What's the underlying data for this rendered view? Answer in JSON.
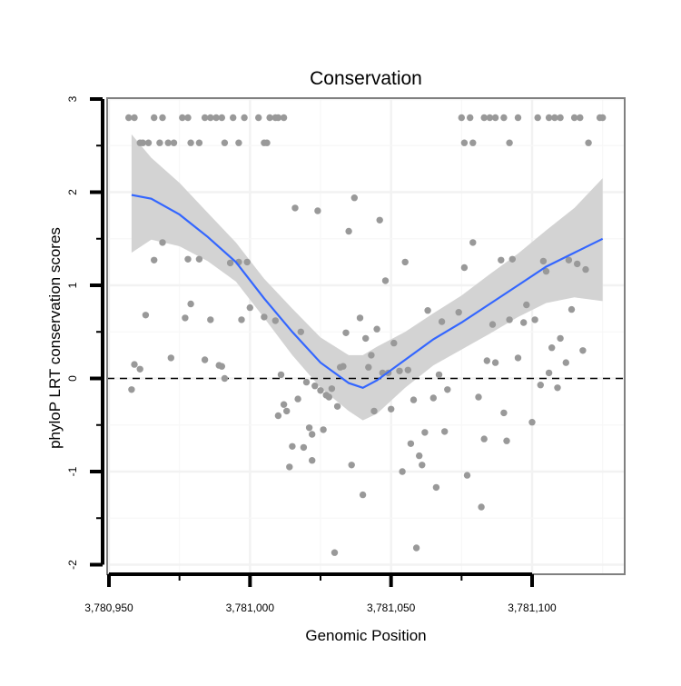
{
  "chart_data": {
    "type": "scatter",
    "title": "Conservation",
    "xlabel": "Genomic Position",
    "ylabel": "phyloP LRT conservation scores",
    "xlim": [
      3780951,
      3781125
    ],
    "ylim": [
      -2,
      3
    ],
    "x_ticks": [
      3780950,
      3781000,
      3781050,
      3781100
    ],
    "x_tick_labels": [
      "3,780,950",
      "3,781,000",
      "3,781,050",
      "3,781,100"
    ],
    "y_ticks": [
      -2,
      -1,
      0,
      1,
      2,
      3
    ],
    "y_tick_labels": [
      "-2",
      "-1",
      "0",
      "1",
      "2",
      "3"
    ],
    "grid": true,
    "reference_line": {
      "y": 0,
      "style": "dashed"
    },
    "point_color": "#999999",
    "smooth_color": "#3366ff",
    "band_color": "#d3d3d3",
    "points": [
      [
        3780957,
        2.8
      ],
      [
        3780959,
        2.8
      ],
      [
        3780961,
        2.53
      ],
      [
        3780962,
        2.53
      ],
      [
        3780964,
        2.53
      ],
      [
        3780966,
        2.8
      ],
      [
        3780968,
        2.53
      ],
      [
        3780969,
        2.8
      ],
      [
        3780971,
        2.53
      ],
      [
        3780973,
        2.53
      ],
      [
        3780976,
        2.8
      ],
      [
        3780978,
        2.8
      ],
      [
        3780979,
        2.53
      ],
      [
        3780982,
        2.53
      ],
      [
        3780984,
        2.8
      ],
      [
        3780986,
        2.8
      ],
      [
        3780988,
        2.8
      ],
      [
        3780990,
        2.8
      ],
      [
        3780991,
        2.53
      ],
      [
        3780994,
        2.8
      ],
      [
        3780996,
        2.53
      ],
      [
        3780998,
        2.8
      ],
      [
        3781003,
        2.8
      ],
      [
        3781005,
        2.53
      ],
      [
        3781006,
        2.53
      ],
      [
        3781007,
        2.8
      ],
      [
        3781009,
        2.8
      ],
      [
        3781010,
        2.8
      ],
      [
        3781012,
        2.8
      ],
      [
        3781075,
        2.8
      ],
      [
        3781076,
        2.53
      ],
      [
        3781078,
        2.8
      ],
      [
        3781079,
        2.53
      ],
      [
        3781083,
        2.8
      ],
      [
        3781085,
        2.8
      ],
      [
        3781087,
        2.8
      ],
      [
        3781090,
        2.8
      ],
      [
        3781092,
        2.53
      ],
      [
        3781095,
        2.8
      ],
      [
        3781102,
        2.8
      ],
      [
        3781106,
        2.8
      ],
      [
        3781108,
        2.8
      ],
      [
        3781110,
        2.8
      ],
      [
        3781115,
        2.8
      ],
      [
        3781117,
        2.8
      ],
      [
        3781120,
        2.53
      ],
      [
        3781124,
        2.8
      ],
      [
        3781125,
        2.8
      ],
      [
        3780958,
        -0.12
      ],
      [
        3780959,
        0.15
      ],
      [
        3780961,
        0.1
      ],
      [
        3780963,
        0.68
      ],
      [
        3780966,
        1.27
      ],
      [
        3780969,
        1.46
      ],
      [
        3780972,
        0.22
      ],
      [
        3780977,
        0.65
      ],
      [
        3780978,
        1.28
      ],
      [
        3780979,
        0.8
      ],
      [
        3780982,
        1.28
      ],
      [
        3780984,
        0.2
      ],
      [
        3780986,
        0.63
      ],
      [
        3780989,
        0.14
      ],
      [
        3780990,
        0.13
      ],
      [
        3780991,
        0.0
      ],
      [
        3780993,
        1.24
      ],
      [
        3780996,
        1.25
      ],
      [
        3780997,
        0.63
      ],
      [
        3780999,
        1.25
      ],
      [
        3781000,
        0.76
      ],
      [
        3781005,
        0.66
      ],
      [
        3781009,
        0.62
      ],
      [
        3781010,
        -0.4
      ],
      [
        3781011,
        0.04
      ],
      [
        3781012,
        -0.28
      ],
      [
        3781013,
        -0.35
      ],
      [
        3781014,
        -0.95
      ],
      [
        3781015,
        -0.73
      ],
      [
        3781016,
        1.83
      ],
      [
        3781017,
        -0.22
      ],
      [
        3781018,
        0.5
      ],
      [
        3781019,
        -0.74
      ],
      [
        3781020,
        -0.04
      ],
      [
        3781021,
        -0.53
      ],
      [
        3781022,
        -0.88
      ],
      [
        3781022,
        -0.6
      ],
      [
        3781023,
        -0.08
      ],
      [
        3781024,
        1.8
      ],
      [
        3781025,
        -0.13
      ],
      [
        3781026,
        -0.55
      ],
      [
        3781027,
        -0.18
      ],
      [
        3781028,
        -0.2
      ],
      [
        3781029,
        -0.11
      ],
      [
        3781030,
        -1.87
      ],
      [
        3781031,
        -0.3
      ],
      [
        3781032,
        0.12
      ],
      [
        3781033,
        0.13
      ],
      [
        3781034,
        0.49
      ],
      [
        3781035,
        1.58
      ],
      [
        3781036,
        -0.93
      ],
      [
        3781037,
        1.94
      ],
      [
        3781039,
        0.65
      ],
      [
        3781040,
        -1.25
      ],
      [
        3781041,
        0.43
      ],
      [
        3781042,
        0.12
      ],
      [
        3781043,
        0.25
      ],
      [
        3781044,
        -0.35
      ],
      [
        3781045,
        0.53
      ],
      [
        3781046,
        1.7
      ],
      [
        3781047,
        0.06
      ],
      [
        3781048,
        1.05
      ],
      [
        3781049,
        0.06
      ],
      [
        3781050,
        -0.33
      ],
      [
        3781051,
        0.38
      ],
      [
        3781053,
        0.08
      ],
      [
        3781054,
        -1.0
      ],
      [
        3781055,
        1.25
      ],
      [
        3781056,
        0.09
      ],
      [
        3781057,
        -0.7
      ],
      [
        3781058,
        -0.23
      ],
      [
        3781059,
        -1.82
      ],
      [
        3781060,
        -0.83
      ],
      [
        3781061,
        -0.93
      ],
      [
        3781062,
        -0.58
      ],
      [
        3781063,
        0.73
      ],
      [
        3781065,
        -0.21
      ],
      [
        3781066,
        -1.17
      ],
      [
        3781067,
        0.04
      ],
      [
        3781068,
        0.61
      ],
      [
        3781069,
        -0.57
      ],
      [
        3781070,
        -0.12
      ],
      [
        3781074,
        0.71
      ],
      [
        3781076,
        1.19
      ],
      [
        3781077,
        -1.04
      ],
      [
        3781079,
        1.46
      ],
      [
        3781081,
        -0.2
      ],
      [
        3781082,
        -1.38
      ],
      [
        3781083,
        -0.65
      ],
      [
        3781084,
        0.19
      ],
      [
        3781086,
        0.58
      ],
      [
        3781087,
        0.17
      ],
      [
        3781089,
        1.27
      ],
      [
        3781090,
        -0.37
      ],
      [
        3781091,
        -0.67
      ],
      [
        3781092,
        0.63
      ],
      [
        3781093,
        1.28
      ],
      [
        3781095,
        0.22
      ],
      [
        3781097,
        0.6
      ],
      [
        3781098,
        0.79
      ],
      [
        3781100,
        -0.47
      ],
      [
        3781101,
        0.63
      ],
      [
        3781103,
        -0.07
      ],
      [
        3781104,
        1.26
      ],
      [
        3781105,
        1.15
      ],
      [
        3781106,
        0.06
      ],
      [
        3781107,
        0.33
      ],
      [
        3781109,
        -0.1
      ],
      [
        3781110,
        0.43
      ],
      [
        3781112,
        0.17
      ],
      [
        3781113,
        1.27
      ],
      [
        3781114,
        0.74
      ],
      [
        3781116,
        1.23
      ],
      [
        3781118,
        0.3
      ],
      [
        3781119,
        1.17
      ]
    ],
    "smooth": {
      "x": [
        3780958,
        3780965,
        3780975,
        3780985,
        3780995,
        3781005,
        3781015,
        3781025,
        3781035,
        3781040,
        3781045,
        3781055,
        3781065,
        3781075,
        3781085,
        3781095,
        3781105,
        3781115,
        3781125
      ],
      "y": [
        1.97,
        1.93,
        1.76,
        1.52,
        1.25,
        0.86,
        0.5,
        0.17,
        -0.05,
        -0.1,
        -0.02,
        0.2,
        0.42,
        0.6,
        0.8,
        1.0,
        1.2,
        1.35,
        1.5
      ],
      "lower": [
        1.35,
        1.49,
        1.42,
        1.26,
        1.04,
        0.65,
        0.25,
        -0.1,
        -0.35,
        -0.45,
        -0.38,
        -0.1,
        0.14,
        0.31,
        0.48,
        0.66,
        0.81,
        0.87,
        0.83
      ],
      "upper": [
        2.62,
        2.37,
        2.1,
        1.78,
        1.46,
        1.07,
        0.75,
        0.44,
        0.25,
        0.25,
        0.34,
        0.5,
        0.7,
        0.89,
        1.12,
        1.34,
        1.59,
        1.83,
        2.15
      ]
    }
  }
}
